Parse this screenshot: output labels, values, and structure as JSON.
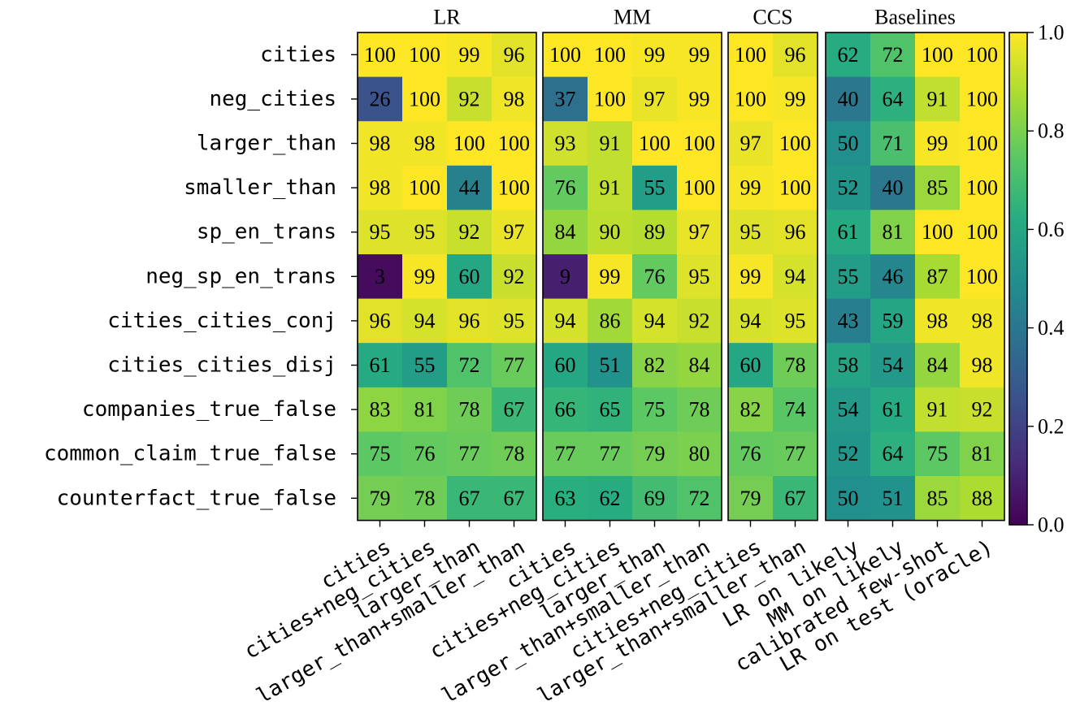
{
  "chart_data": {
    "type": "heatmap",
    "rows": [
      "cities",
      "neg_cities",
      "larger_than",
      "smaller_than",
      "sp_en_trans",
      "neg_sp_en_trans",
      "cities_cities_conj",
      "cities_cities_disj",
      "companies_true_false",
      "common_claim_true_false",
      "counterfact_true_false"
    ],
    "groups": [
      {
        "name": "LR",
        "columns": [
          "cities",
          "cities+neg_cities",
          "larger_than",
          "larger_than+smaller_than"
        ],
        "values": [
          [
            100,
            100,
            99,
            96
          ],
          [
            26,
            100,
            92,
            98
          ],
          [
            98,
            98,
            100,
            100
          ],
          [
            98,
            100,
            44,
            100
          ],
          [
            95,
            95,
            92,
            97
          ],
          [
            3,
            99,
            60,
            92
          ],
          [
            96,
            94,
            96,
            95
          ],
          [
            61,
            55,
            72,
            77
          ],
          [
            83,
            81,
            78,
            67
          ],
          [
            75,
            76,
            77,
            78
          ],
          [
            79,
            78,
            67,
            67
          ]
        ]
      },
      {
        "name": "MM",
        "columns": [
          "cities",
          "cities+neg_cities",
          "larger_than",
          "larger_than+smaller_than"
        ],
        "values": [
          [
            100,
            100,
            99,
            99
          ],
          [
            37,
            100,
            97,
            99
          ],
          [
            93,
            91,
            100,
            100
          ],
          [
            76,
            91,
            55,
            100
          ],
          [
            84,
            90,
            89,
            97
          ],
          [
            9,
            99,
            76,
            95
          ],
          [
            94,
            86,
            94,
            92
          ],
          [
            60,
            51,
            82,
            84
          ],
          [
            66,
            65,
            75,
            78
          ],
          [
            77,
            77,
            79,
            80
          ],
          [
            63,
            62,
            69,
            72
          ]
        ]
      },
      {
        "name": "CCS",
        "columns": [
          "cities+neg_cities",
          "larger_than+smaller_than"
        ],
        "values": [
          [
            100,
            96
          ],
          [
            100,
            99
          ],
          [
            97,
            100
          ],
          [
            99,
            100
          ],
          [
            95,
            96
          ],
          [
            99,
            94
          ],
          [
            94,
            95
          ],
          [
            60,
            78
          ],
          [
            82,
            74
          ],
          [
            76,
            77
          ],
          [
            79,
            67
          ]
        ]
      },
      {
        "name": "Baselines",
        "columns": [
          "LR on likely",
          "MM on likely",
          "calibrated few-shot",
          "LR on test (oracle)"
        ],
        "values": [
          [
            62,
            72,
            100,
            100
          ],
          [
            40,
            64,
            91,
            100
          ],
          [
            50,
            71,
            99,
            100
          ],
          [
            52,
            40,
            85,
            100
          ],
          [
            61,
            81,
            100,
            100
          ],
          [
            55,
            46,
            87,
            100
          ],
          [
            43,
            59,
            98,
            98
          ],
          [
            58,
            54,
            84,
            98
          ],
          [
            54,
            61,
            91,
            92
          ],
          [
            52,
            64,
            75,
            81
          ],
          [
            50,
            51,
            85,
            88
          ]
        ]
      }
    ],
    "colorbar": {
      "colormap": "viridis",
      "range": [
        0.0,
        1.0
      ],
      "ticks": [
        "0.0",
        "0.2",
        "0.4",
        "0.6",
        "0.8",
        "1.0"
      ]
    }
  }
}
